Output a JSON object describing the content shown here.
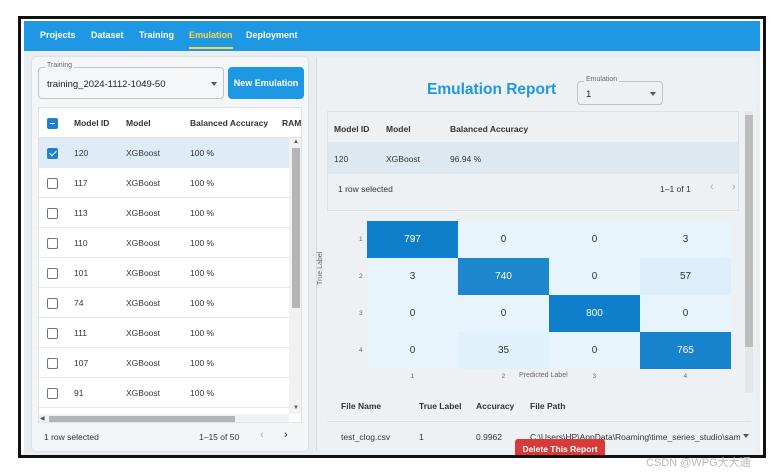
{
  "nav": {
    "tabs": [
      {
        "label": "Projects"
      },
      {
        "label": "Dataset"
      },
      {
        "label": "Training"
      },
      {
        "label": "Emulation"
      },
      {
        "label": "Deployment"
      }
    ],
    "active": "Emulation"
  },
  "left": {
    "training_select": {
      "legend": "Training",
      "value": "training_2024-1112-1049-50"
    },
    "new_button": "New Emulation",
    "columns": [
      "Model ID",
      "Model",
      "Balanced Accuracy",
      "RAM ("
    ],
    "rows": [
      {
        "id": "120",
        "model": "XGBoost",
        "acc": "100 %",
        "checked": true
      },
      {
        "id": "117",
        "model": "XGBoost",
        "acc": "100 %",
        "checked": false
      },
      {
        "id": "113",
        "model": "XGBoost",
        "acc": "100 %",
        "checked": false
      },
      {
        "id": "110",
        "model": "XGBoost",
        "acc": "100 %",
        "checked": false
      },
      {
        "id": "101",
        "model": "XGBoost",
        "acc": "100 %",
        "checked": false
      },
      {
        "id": "74",
        "model": "XGBoost",
        "acc": "100 %",
        "checked": false
      },
      {
        "id": "111",
        "model": "XGBoost",
        "acc": "100 %",
        "checked": false
      },
      {
        "id": "107",
        "model": "XGBoost",
        "acc": "100 %",
        "checked": false
      },
      {
        "id": "91",
        "model": "XGBoost",
        "acc": "100 %",
        "checked": false
      }
    ],
    "selected_text": "1 row selected",
    "pagination": "1–15 of 50"
  },
  "right": {
    "title": "Emulation Report",
    "emulation_select": {
      "legend": "Emulation",
      "value": "1"
    },
    "summary_columns": [
      "Model ID",
      "Model",
      "Balanced Accuracy"
    ],
    "summary_row": {
      "id": "120",
      "model": "XGBoost",
      "acc": "96.94 %"
    },
    "selected_text": "1 row selected",
    "pagination": "1–1 of 1",
    "delete_button": "Delete This Report"
  },
  "chart_data": {
    "type": "heatmap",
    "x_ticks": [
      "1",
      "2",
      "3",
      "4"
    ],
    "y_ticks": [
      "1",
      "2",
      "3",
      "4"
    ],
    "xlabel": "Predicted Label",
    "ylabel": "True Label",
    "matrix": [
      [
        797,
        0,
        0,
        3
      ],
      [
        3,
        740,
        0,
        57
      ],
      [
        0,
        0,
        800,
        0
      ],
      [
        0,
        35,
        0,
        765
      ]
    ],
    "color_low": "#e8f4fc",
    "color_high": "#0f7fcb"
  },
  "files": {
    "columns": [
      "File Name",
      "True Label",
      "Accuracy",
      "File Path"
    ],
    "rows": [
      {
        "name": "test_clog.csv",
        "label": "1",
        "acc": "0.9962",
        "path": "C:\\Users\\HP\\AppData\\Roaming\\time_series_studio\\sample_"
      }
    ]
  },
  "watermark": "CSDN @WPG大大通"
}
